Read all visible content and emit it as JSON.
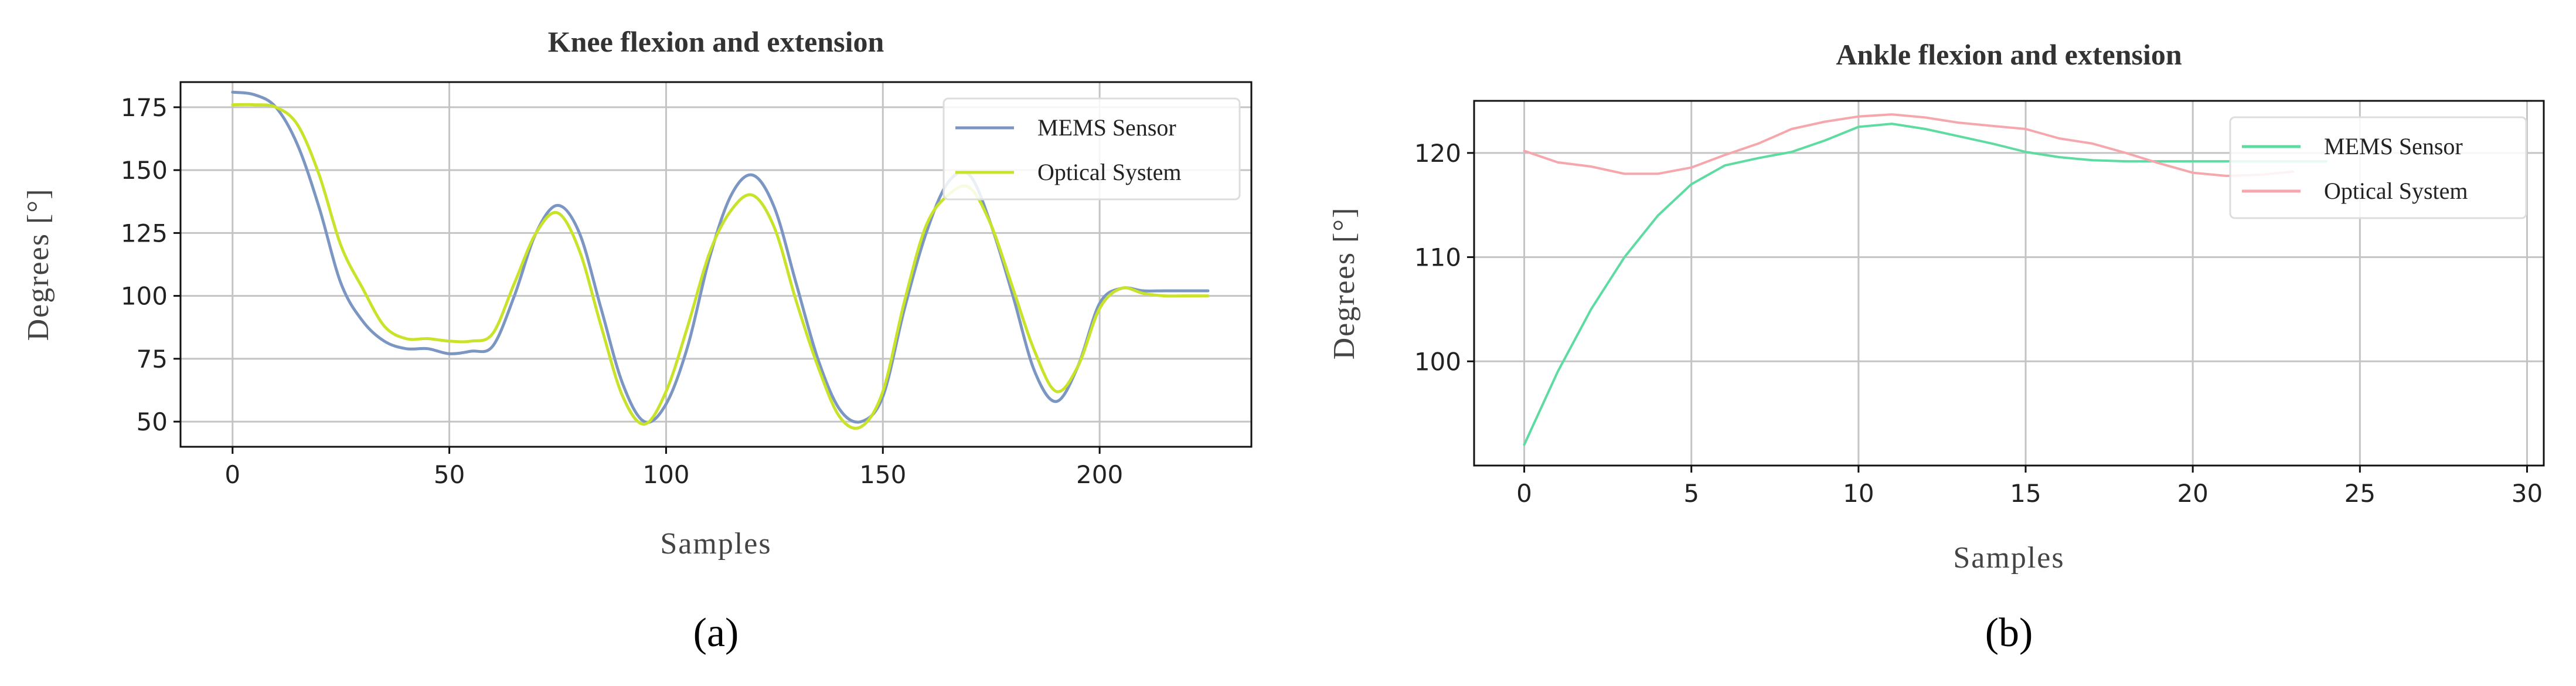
{
  "chart_data": [
    {
      "type": "line",
      "title": "Knee flexion and extension",
      "xlabel": "Samples",
      "ylabel": "Degrees [°]",
      "panel_label": "(a)",
      "xlim": [
        -12,
        235
      ],
      "ylim": [
        40,
        185
      ],
      "xticks": [
        0,
        50,
        100,
        150,
        200
      ],
      "yticks": [
        50,
        75,
        100,
        125,
        150,
        175
      ],
      "grid": true,
      "legend_position": "top-right",
      "series": [
        {
          "name": "MEMS Sensor",
          "color": "#7b96c2",
          "x": [
            0,
            5,
            10,
            15,
            20,
            25,
            30,
            35,
            40,
            45,
            50,
            55,
            60,
            65,
            70,
            75,
            80,
            85,
            90,
            95,
            100,
            105,
            110,
            115,
            120,
            125,
            130,
            135,
            140,
            145,
            150,
            155,
            160,
            165,
            170,
            175,
            180,
            185,
            190,
            195,
            200,
            205,
            210,
            215,
            220,
            225
          ],
          "y": [
            181,
            180,
            175,
            160,
            135,
            105,
            90,
            82,
            79,
            79,
            77,
            78,
            80,
            100,
            125,
            136,
            125,
            95,
            65,
            50,
            57,
            80,
            115,
            140,
            148,
            135,
            105,
            75,
            55,
            50,
            60,
            95,
            125,
            145,
            148,
            128,
            100,
            70,
            58,
            72,
            97,
            103,
            102,
            102,
            102,
            102
          ]
        },
        {
          "name": "Optical System",
          "color": "#c9e22a",
          "x": [
            0,
            5,
            10,
            15,
            20,
            25,
            30,
            35,
            40,
            45,
            50,
            55,
            60,
            65,
            70,
            75,
            80,
            85,
            90,
            95,
            100,
            105,
            110,
            115,
            120,
            125,
            130,
            135,
            140,
            145,
            150,
            155,
            160,
            165,
            170,
            175,
            180,
            185,
            190,
            195,
            200,
            205,
            210,
            215,
            220,
            225
          ],
          "y": [
            176,
            176,
            175,
            168,
            148,
            120,
            103,
            88,
            83,
            83,
            82,
            82,
            85,
            105,
            125,
            133,
            118,
            88,
            60,
            49,
            62,
            88,
            117,
            134,
            140,
            127,
            98,
            72,
            52,
            48,
            62,
            98,
            128,
            140,
            143,
            128,
            103,
            78,
            62,
            72,
            95,
            103,
            101,
            100,
            100,
            100
          ]
        }
      ]
    },
    {
      "type": "line",
      "title": "Ankle flexion and extension",
      "xlabel": "Samples",
      "ylabel": "Degrees [°]",
      "panel_label": "(b)",
      "xlim": [
        -1.5,
        30.5
      ],
      "ylim": [
        90,
        125
      ],
      "xticks": [
        0,
        5,
        10,
        15,
        20,
        25,
        30
      ],
      "yticks": [
        100,
        110,
        120
      ],
      "grid": true,
      "legend_position": "top-right",
      "series": [
        {
          "name": "MEMS Sensor",
          "color": "#5edba0",
          "x": [
            0,
            1,
            2,
            3,
            4,
            5,
            6,
            7,
            8,
            9,
            10,
            11,
            12,
            13,
            14,
            15,
            16,
            17,
            18,
            19,
            20,
            21,
            22,
            23,
            24
          ],
          "y": [
            92,
            99,
            105,
            110,
            114,
            117,
            118.8,
            119.5,
            120.1,
            121.2,
            122.5,
            122.8,
            122.3,
            121.6,
            120.9,
            120.1,
            119.6,
            119.3,
            119.2,
            119.2,
            119.2,
            119.2,
            119.2,
            119.2,
            119.2
          ]
        },
        {
          "name": "Optical System",
          "color": "#f5a7ad",
          "x": [
            0,
            1,
            2,
            3,
            4,
            5,
            6,
            7,
            8,
            9,
            10,
            11,
            12,
            13,
            14,
            15,
            16,
            17,
            18,
            19,
            20,
            21,
            22,
            23
          ],
          "y": [
            120.2,
            119.1,
            118.7,
            118,
            118,
            118.6,
            119.8,
            120.9,
            122.3,
            123,
            123.5,
            123.7,
            123.4,
            122.9,
            122.6,
            122.3,
            121.4,
            120.9,
            120,
            119,
            118.1,
            117.8,
            117.9,
            118.2
          ]
        }
      ]
    }
  ]
}
